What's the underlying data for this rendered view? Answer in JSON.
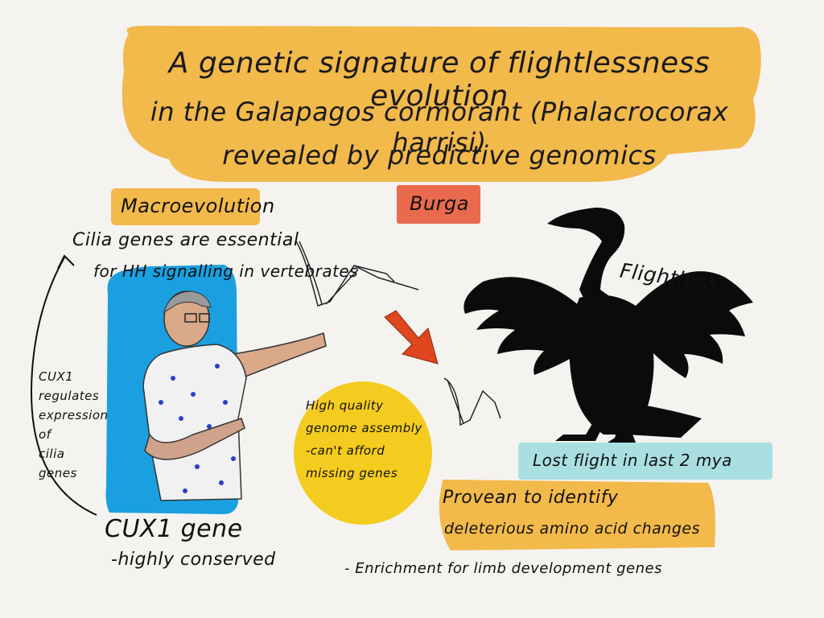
{
  "title": {
    "line1": "A genetic signature of flightlessness evolution",
    "line2": "in the Galapagos cormorant (Phalacrocorax harrisi)",
    "line3": "revealed by predictive genomics"
  },
  "labels": {
    "macroevolution": "Macroevolution",
    "burga": "Burga",
    "cilia_line1": "Cilia genes are essential",
    "cilia_line2": "for HH signalling in vertebrates",
    "cux1_regulates": [
      "CUX1",
      "regulates",
      "expression",
      "of",
      "cilia",
      "genes"
    ],
    "cux1_gene": "CUX1 gene",
    "cux1_conserved": "-highly conserved",
    "genome": [
      "High quality",
      "genome assembly",
      "-can't afford",
      "missing genes"
    ],
    "flightless": "Flightless",
    "lost_flight": "Lost flight in last 2 mya",
    "provean_line1": "Provean to identify",
    "provean_line2": "deleterious amino acid changes",
    "enrichment": "- Enrichment for limb development genes"
  },
  "colors": {
    "background": "#f4f3f0",
    "title_banner": "#f2b94b",
    "macro_box": "#f2b94b",
    "burga_box": "#ea6a4d",
    "blue_panel": "#1aa0e0",
    "yellow_circle": "#f4cc1f",
    "lost_box": "#a9dfe0",
    "provean_box": "#f2b94b",
    "arrow": "#e0461e",
    "bird": "#0b0b0b"
  },
  "icons": {
    "speaker": "person-pointing-illustration",
    "bird": "cormorant-silhouette",
    "arrow": "down-right-arrow",
    "wings": "wing-bone-sketch"
  }
}
